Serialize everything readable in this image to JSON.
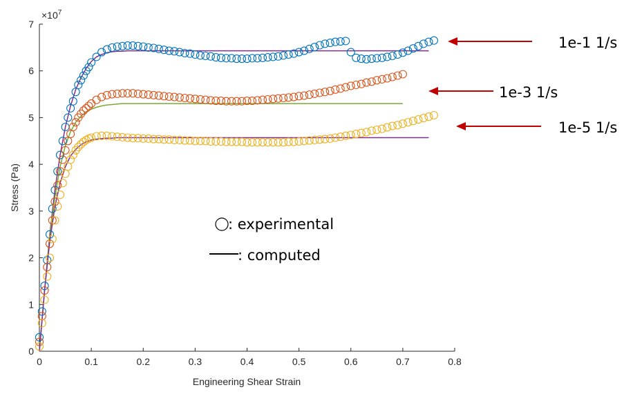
{
  "chart_data": {
    "type": "scatter",
    "xlabel": "Engineering Shear Strain",
    "ylabel": "Stress (Pa)",
    "exponent_label": "×10",
    "exponent_power": "7",
    "xlim": [
      0,
      0.8
    ],
    "ylim": [
      0,
      7
    ],
    "xticks": [
      "0",
      "0.1",
      "0.2",
      "0.3",
      "0.4",
      "0.5",
      "0.6",
      "0.7",
      "0.8"
    ],
    "yticks": [
      "0",
      "1",
      "2",
      "3",
      "4",
      "5",
      "6",
      "7"
    ],
    "grid": false,
    "colors": {
      "rate_1e-1": "#0072BD",
      "rate_1e-3": "#D95319",
      "rate_1e-5": "#EDB120",
      "computed_1e-1": "#7E2F8E",
      "computed_1e-3": "#77AC30",
      "computed_1e-5": "#7E2F8E",
      "arrow": "#C00000"
    },
    "series": [
      {
        "name": "1e-1 1/s",
        "kind": "experimental",
        "color": "#0072BD",
        "x": [
          0,
          0.005,
          0.01,
          0.015,
          0.02,
          0.025,
          0.03,
          0.035,
          0.04,
          0.045,
          0.05,
          0.055,
          0.06,
          0.065,
          0.07,
          0.075,
          0.08,
          0.085,
          0.09,
          0.095,
          0.1,
          0.11,
          0.12,
          0.13,
          0.14,
          0.15,
          0.16,
          0.17,
          0.18,
          0.19,
          0.2,
          0.21,
          0.22,
          0.23,
          0.24,
          0.25,
          0.26,
          0.27,
          0.28,
          0.29,
          0.3,
          0.31,
          0.32,
          0.33,
          0.34,
          0.35,
          0.36,
          0.37,
          0.38,
          0.39,
          0.4,
          0.41,
          0.42,
          0.43,
          0.44,
          0.45,
          0.46,
          0.47,
          0.48,
          0.49,
          0.5,
          0.51,
          0.52,
          0.53,
          0.54,
          0.55,
          0.56,
          0.57,
          0.58,
          0.59,
          0.6,
          0.61,
          0.62,
          0.63,
          0.64,
          0.65,
          0.66,
          0.67,
          0.68,
          0.69,
          0.7,
          0.71,
          0.72,
          0.73,
          0.74,
          0.75,
          0.76
        ],
        "y": [
          0.3,
          0.85,
          1.4,
          1.95,
          2.5,
          3.05,
          3.45,
          3.85,
          4.2,
          4.5,
          4.8,
          5.0,
          5.2,
          5.35,
          5.55,
          5.7,
          5.8,
          5.9,
          6.0,
          6.08,
          6.18,
          6.3,
          6.4,
          6.46,
          6.5,
          6.52,
          6.53,
          6.54,
          6.54,
          6.53,
          6.52,
          6.5,
          6.49,
          6.47,
          6.45,
          6.43,
          6.42,
          6.4,
          6.38,
          6.37,
          6.35,
          6.33,
          6.32,
          6.31,
          6.29,
          6.28,
          6.27,
          6.27,
          6.26,
          6.26,
          6.26,
          6.27,
          6.27,
          6.28,
          6.29,
          6.3,
          6.31,
          6.33,
          6.35,
          6.37,
          6.4,
          6.43,
          6.47,
          6.51,
          6.55,
          6.58,
          6.6,
          6.62,
          6.63,
          6.64,
          6.4,
          6.28,
          6.26,
          6.25,
          6.26,
          6.27,
          6.28,
          6.3,
          6.32,
          6.35,
          6.39,
          6.43,
          6.48,
          6.53,
          6.58,
          6.62,
          6.65
        ]
      },
      {
        "name": "1e-3 1/s",
        "kind": "experimental",
        "color": "#D95319",
        "x": [
          0,
          0.005,
          0.01,
          0.015,
          0.02,
          0.025,
          0.03,
          0.035,
          0.04,
          0.045,
          0.05,
          0.055,
          0.06,
          0.065,
          0.07,
          0.075,
          0.08,
          0.085,
          0.09,
          0.095,
          0.1,
          0.11,
          0.12,
          0.13,
          0.14,
          0.15,
          0.16,
          0.17,
          0.18,
          0.19,
          0.2,
          0.21,
          0.22,
          0.23,
          0.24,
          0.25,
          0.26,
          0.27,
          0.28,
          0.29,
          0.3,
          0.31,
          0.32,
          0.33,
          0.34,
          0.35,
          0.36,
          0.37,
          0.38,
          0.39,
          0.4,
          0.41,
          0.42,
          0.43,
          0.44,
          0.45,
          0.46,
          0.47,
          0.48,
          0.49,
          0.5,
          0.51,
          0.52,
          0.53,
          0.54,
          0.55,
          0.56,
          0.57,
          0.58,
          0.59,
          0.6,
          0.61,
          0.62,
          0.63,
          0.64,
          0.65,
          0.66,
          0.67,
          0.68,
          0.69,
          0.7
        ],
        "y": [
          0.2,
          0.75,
          1.3,
          1.8,
          2.3,
          2.8,
          3.2,
          3.55,
          3.85,
          4.1,
          4.3,
          4.5,
          4.65,
          4.8,
          4.9,
          5.0,
          5.08,
          5.15,
          5.2,
          5.25,
          5.3,
          5.38,
          5.44,
          5.48,
          5.5,
          5.51,
          5.52,
          5.52,
          5.52,
          5.51,
          5.5,
          5.49,
          5.48,
          5.47,
          5.46,
          5.45,
          5.44,
          5.43,
          5.42,
          5.41,
          5.4,
          5.39,
          5.38,
          5.37,
          5.36,
          5.36,
          5.35,
          5.35,
          5.35,
          5.35,
          5.36,
          5.36,
          5.37,
          5.38,
          5.39,
          5.4,
          5.41,
          5.42,
          5.43,
          5.44,
          5.46,
          5.47,
          5.49,
          5.51,
          5.53,
          5.55,
          5.57,
          5.6,
          5.62,
          5.65,
          5.68,
          5.7,
          5.72,
          5.75,
          5.77,
          5.8,
          5.82,
          5.84,
          5.87,
          5.9,
          5.93
        ]
      },
      {
        "name": "1e-5 1/s",
        "kind": "experimental",
        "color": "#EDB120",
        "x": [
          0,
          0.005,
          0.01,
          0.015,
          0.02,
          0.025,
          0.03,
          0.035,
          0.04,
          0.045,
          0.05,
          0.055,
          0.06,
          0.065,
          0.07,
          0.075,
          0.08,
          0.085,
          0.09,
          0.095,
          0.1,
          0.11,
          0.12,
          0.13,
          0.14,
          0.15,
          0.16,
          0.17,
          0.18,
          0.19,
          0.2,
          0.21,
          0.22,
          0.23,
          0.24,
          0.25,
          0.26,
          0.27,
          0.28,
          0.29,
          0.3,
          0.31,
          0.32,
          0.33,
          0.34,
          0.35,
          0.36,
          0.37,
          0.38,
          0.39,
          0.4,
          0.41,
          0.42,
          0.43,
          0.44,
          0.45,
          0.46,
          0.47,
          0.48,
          0.49,
          0.5,
          0.51,
          0.52,
          0.53,
          0.54,
          0.55,
          0.56,
          0.57,
          0.58,
          0.59,
          0.6,
          0.61,
          0.62,
          0.63,
          0.64,
          0.65,
          0.66,
          0.67,
          0.68,
          0.69,
          0.7,
          0.71,
          0.72,
          0.73,
          0.74,
          0.75,
          0.76
        ],
        "y": [
          0.1,
          0.6,
          1.1,
          1.6,
          2.0,
          2.4,
          2.8,
          3.1,
          3.35,
          3.6,
          3.8,
          3.95,
          4.1,
          4.2,
          4.3,
          4.37,
          4.43,
          4.48,
          4.52,
          4.55,
          4.57,
          4.6,
          4.61,
          4.61,
          4.6,
          4.59,
          4.58,
          4.57,
          4.56,
          4.56,
          4.55,
          4.55,
          4.54,
          4.54,
          4.53,
          4.53,
          4.52,
          4.52,
          4.51,
          4.51,
          4.5,
          4.5,
          4.5,
          4.49,
          4.49,
          4.49,
          4.48,
          4.48,
          4.48,
          4.48,
          4.47,
          4.47,
          4.47,
          4.47,
          4.47,
          4.47,
          4.47,
          4.47,
          4.48,
          4.48,
          4.49,
          4.5,
          4.51,
          4.52,
          4.53,
          4.54,
          4.55,
          4.57,
          4.59,
          4.61,
          4.63,
          4.65,
          4.67,
          4.69,
          4.72,
          4.74,
          4.76,
          4.79,
          4.82,
          4.84,
          4.87,
          4.9,
          4.93,
          4.96,
          4.99,
          5.02,
          5.05
        ]
      },
      {
        "name": "1e-1 1/s",
        "kind": "computed",
        "color": "#7E2F8E",
        "x": [
          0,
          0.01,
          0.02,
          0.03,
          0.04,
          0.05,
          0.06,
          0.07,
          0.08,
          0.09,
          0.1,
          0.11,
          0.12,
          0.13,
          0.14,
          0.15,
          0.16,
          0.17,
          0.18,
          0.2,
          0.25,
          0.3,
          0.4,
          0.5,
          0.6,
          0.7,
          0.75
        ],
        "y": [
          0,
          1.3,
          2.5,
          3.45,
          4.2,
          4.8,
          5.25,
          5.6,
          5.85,
          6.05,
          6.2,
          6.3,
          6.35,
          6.39,
          6.41,
          6.42,
          6.42,
          6.43,
          6.43,
          6.43,
          6.43,
          6.43,
          6.43,
          6.43,
          6.43,
          6.43,
          6.43
        ]
      },
      {
        "name": "1e-3 1/s",
        "kind": "computed",
        "color": "#77AC30",
        "x": [
          0,
          0.01,
          0.02,
          0.03,
          0.04,
          0.05,
          0.06,
          0.07,
          0.08,
          0.09,
          0.1,
          0.11,
          0.12,
          0.13,
          0.14,
          0.15,
          0.16,
          0.2,
          0.3,
          0.4,
          0.5,
          0.6,
          0.7
        ],
        "y": [
          0,
          1.3,
          2.45,
          3.3,
          3.95,
          4.4,
          4.7,
          4.9,
          5.03,
          5.12,
          5.18,
          5.22,
          5.25,
          5.27,
          5.28,
          5.29,
          5.3,
          5.3,
          5.3,
          5.3,
          5.3,
          5.3,
          5.3
        ]
      },
      {
        "name": "1e-5 1/s",
        "kind": "computed",
        "color": "#7E2F8E",
        "x": [
          0,
          0.01,
          0.02,
          0.03,
          0.04,
          0.05,
          0.06,
          0.07,
          0.08,
          0.09,
          0.1,
          0.11,
          0.12,
          0.13,
          0.14,
          0.15,
          0.16,
          0.2,
          0.3,
          0.4,
          0.5,
          0.6,
          0.7,
          0.75
        ],
        "y": [
          0,
          1.3,
          2.35,
          3.1,
          3.6,
          3.95,
          4.18,
          4.32,
          4.42,
          4.48,
          4.52,
          4.54,
          4.55,
          4.56,
          4.56,
          4.57,
          4.57,
          4.57,
          4.57,
          4.57,
          4.57,
          4.57,
          4.57,
          4.57
        ]
      }
    ],
    "annotations": [
      {
        "text": "1e-1 1/s",
        "arrow_color": "#C00000"
      },
      {
        "text": "1e-3 1/s",
        "arrow_color": "#C00000"
      },
      {
        "text": "1e-5 1/s",
        "arrow_color": "#C00000"
      }
    ],
    "legend": {
      "experimental_label": ": experimental",
      "computed_label": ": computed"
    }
  }
}
